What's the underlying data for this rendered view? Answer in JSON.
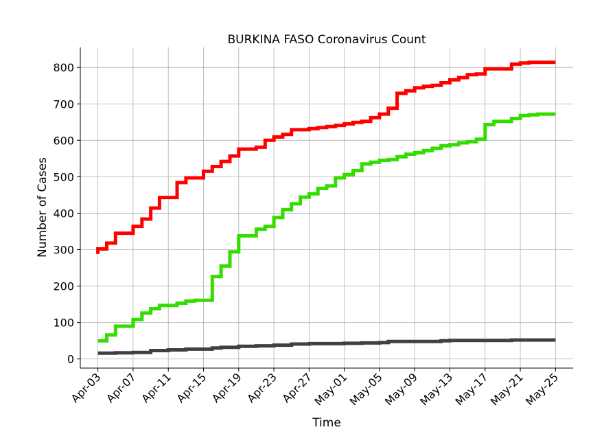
{
  "chart_data": {
    "type": "line",
    "title": "BURKINA FASO Coronavirus Count",
    "xlabel": "Time",
    "ylabel": "Number of Cases",
    "x_start": "2020-04-03",
    "x_end": "2020-05-25",
    "xticks": [
      "Apr-03",
      "Apr-07",
      "Apr-11",
      "Apr-15",
      "Apr-19",
      "Apr-23",
      "Apr-27",
      "May-01",
      "May-05",
      "May-09",
      "May-13",
      "May-17",
      "May-21",
      "May-25"
    ],
    "xlim": [
      "2020-04-01",
      "2020-05-27"
    ],
    "ylim": [
      -25,
      855
    ],
    "yticks": [
      0,
      100,
      200,
      300,
      400,
      500,
      600,
      700,
      800
    ],
    "grid": true,
    "series": [
      {
        "color": "#ff0000",
        "points": [
          [
            "2020-04-03",
            288
          ],
          [
            "2020-04-03",
            302
          ],
          [
            "2020-04-04",
            318
          ],
          [
            "2020-04-05",
            345
          ],
          [
            "2020-04-06",
            345
          ],
          [
            "2020-04-07",
            364
          ],
          [
            "2020-04-08",
            384
          ],
          [
            "2020-04-09",
            414
          ],
          [
            "2020-04-10",
            443
          ],
          [
            "2020-04-11",
            443
          ],
          [
            "2020-04-12",
            484
          ],
          [
            "2020-04-13",
            497
          ],
          [
            "2020-04-14",
            497
          ],
          [
            "2020-04-15",
            515
          ],
          [
            "2020-04-16",
            528
          ],
          [
            "2020-04-17",
            542
          ],
          [
            "2020-04-18",
            557
          ],
          [
            "2020-04-19",
            565
          ],
          [
            "2020-04-19",
            576
          ],
          [
            "2020-04-20",
            576
          ],
          [
            "2020-04-21",
            581
          ],
          [
            "2020-04-22",
            600
          ],
          [
            "2020-04-23",
            609
          ],
          [
            "2020-04-24",
            616
          ],
          [
            "2020-04-25",
            616
          ],
          [
            "2020-04-25",
            629
          ],
          [
            "2020-04-26",
            629
          ],
          [
            "2020-04-27",
            632
          ],
          [
            "2020-04-28",
            635
          ],
          [
            "2020-04-29",
            638
          ],
          [
            "2020-04-30",
            641
          ],
          [
            "2020-05-01",
            645
          ],
          [
            "2020-05-02",
            649
          ],
          [
            "2020-05-03",
            652
          ],
          [
            "2020-05-04",
            662
          ],
          [
            "2020-05-05",
            672
          ],
          [
            "2020-05-06",
            688
          ],
          [
            "2020-05-07",
            729
          ],
          [
            "2020-05-08",
            736
          ],
          [
            "2020-05-09",
            744
          ],
          [
            "2020-05-10",
            748
          ],
          [
            "2020-05-11",
            751
          ],
          [
            "2020-05-12",
            758
          ],
          [
            "2020-05-13",
            766
          ],
          [
            "2020-05-14",
            772
          ],
          [
            "2020-05-15",
            780
          ],
          [
            "2020-05-16",
            782
          ],
          [
            "2020-05-17",
            796
          ],
          [
            "2020-05-18",
            796
          ],
          [
            "2020-05-19",
            796
          ],
          [
            "2020-05-20",
            809
          ],
          [
            "2020-05-21",
            812
          ],
          [
            "2020-05-22",
            814
          ],
          [
            "2020-05-23",
            814
          ],
          [
            "2020-05-24",
            814
          ],
          [
            "2020-05-25",
            814
          ]
        ]
      },
      {
        "color": "#33dd00",
        "points": [
          [
            "2020-04-03",
            50
          ],
          [
            "2020-04-04",
            66
          ],
          [
            "2020-04-05",
            90
          ],
          [
            "2020-04-06",
            90
          ],
          [
            "2020-04-07",
            108
          ],
          [
            "2020-04-08",
            126
          ],
          [
            "2020-04-09",
            138
          ],
          [
            "2020-04-10",
            147
          ],
          [
            "2020-04-11",
            147
          ],
          [
            "2020-04-12",
            153
          ],
          [
            "2020-04-13",
            159
          ],
          [
            "2020-04-14",
            161
          ],
          [
            "2020-04-15",
            161
          ],
          [
            "2020-04-16",
            178
          ],
          [
            "2020-04-16",
            226
          ],
          [
            "2020-04-17",
            255
          ],
          [
            "2020-04-18",
            294
          ],
          [
            "2020-04-19",
            320
          ],
          [
            "2020-04-19",
            338
          ],
          [
            "2020-04-20",
            338
          ],
          [
            "2020-04-21",
            356
          ],
          [
            "2020-04-22",
            364
          ],
          [
            "2020-04-23",
            388
          ],
          [
            "2020-04-24",
            410
          ],
          [
            "2020-04-25",
            426
          ],
          [
            "2020-04-26",
            444
          ],
          [
            "2020-04-27",
            453
          ],
          [
            "2020-04-28",
            468
          ],
          [
            "2020-04-29",
            475
          ],
          [
            "2020-04-30",
            497
          ],
          [
            "2020-05-01",
            506
          ],
          [
            "2020-05-02",
            517
          ],
          [
            "2020-05-03",
            535
          ],
          [
            "2020-05-04",
            540
          ],
          [
            "2020-05-05",
            545
          ],
          [
            "2020-05-06",
            547
          ],
          [
            "2020-05-07",
            555
          ],
          [
            "2020-05-08",
            562
          ],
          [
            "2020-05-09",
            566
          ],
          [
            "2020-05-10",
            572
          ],
          [
            "2020-05-11",
            578
          ],
          [
            "2020-05-12",
            585
          ],
          [
            "2020-05-13",
            588
          ],
          [
            "2020-05-14",
            593
          ],
          [
            "2020-05-15",
            596
          ],
          [
            "2020-05-16",
            603
          ],
          [
            "2020-05-17",
            643
          ],
          [
            "2020-05-18",
            652
          ],
          [
            "2020-05-19",
            652
          ],
          [
            "2020-05-20",
            660
          ],
          [
            "2020-05-21",
            668
          ],
          [
            "2020-05-22",
            670
          ],
          [
            "2020-05-23",
            672
          ],
          [
            "2020-05-24",
            672
          ],
          [
            "2020-05-25",
            672
          ]
        ]
      },
      {
        "color": "#404040",
        "points": [
          [
            "2020-04-03",
            16
          ],
          [
            "2020-04-05",
            17
          ],
          [
            "2020-04-07",
            18
          ],
          [
            "2020-04-09",
            23
          ],
          [
            "2020-04-11",
            25
          ],
          [
            "2020-04-13",
            27
          ],
          [
            "2020-04-15",
            27
          ],
          [
            "2020-04-16",
            30
          ],
          [
            "2020-04-17",
            32
          ],
          [
            "2020-04-19",
            35
          ],
          [
            "2020-04-21",
            36
          ],
          [
            "2020-04-23",
            38
          ],
          [
            "2020-04-25",
            41
          ],
          [
            "2020-04-27",
            42
          ],
          [
            "2020-04-29",
            42
          ],
          [
            "2020-05-01",
            43
          ],
          [
            "2020-05-03",
            44
          ],
          [
            "2020-05-05",
            45
          ],
          [
            "2020-05-06",
            48
          ],
          [
            "2020-05-09",
            48
          ],
          [
            "2020-05-12",
            50
          ],
          [
            "2020-05-13",
            51
          ],
          [
            "2020-05-17",
            51
          ],
          [
            "2020-05-20",
            52
          ],
          [
            "2020-05-25",
            52
          ]
        ]
      }
    ]
  }
}
